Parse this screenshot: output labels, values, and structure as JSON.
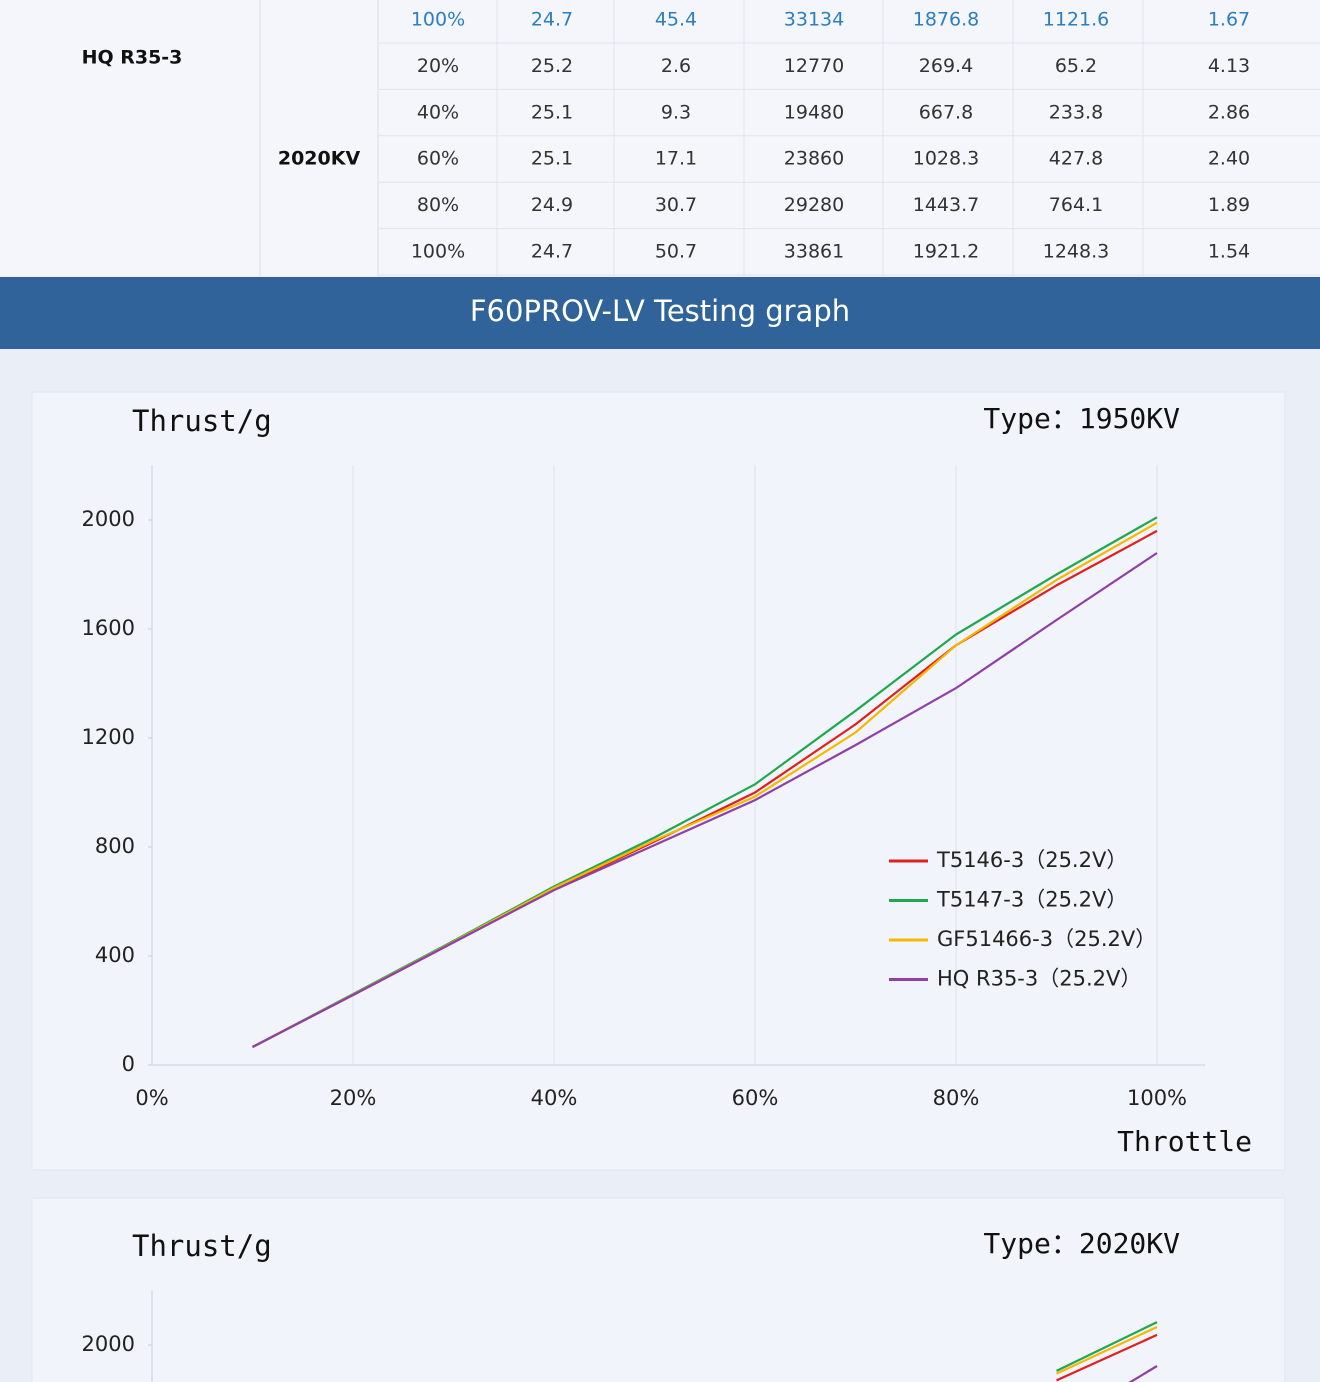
{
  "table": {
    "group_label": "HQ R35-3",
    "kv_label": "2020KV",
    "rows": [
      [
        "100%",
        "24.7",
        "45.4",
        "33134",
        "1876.8",
        "1121.6",
        "1.67"
      ],
      [
        "20%",
        "25.2",
        "2.6",
        "12770",
        "269.4",
        "65.2",
        "4.13"
      ],
      [
        "40%",
        "25.1",
        "9.3",
        "19480",
        "667.8",
        "233.8",
        "2.86"
      ],
      [
        "60%",
        "25.1",
        "17.1",
        "23860",
        "1028.3",
        "427.8",
        "2.40"
      ],
      [
        "80%",
        "24.9",
        "30.7",
        "29280",
        "1443.7",
        "764.1",
        "1.89"
      ],
      [
        "100%",
        "24.7",
        "50.7",
        "33861",
        "1921.2",
        "1248.3",
        "1.54"
      ]
    ]
  },
  "banner": {
    "title": "F60PROV-LV Testing graph"
  },
  "chart_data": [
    {
      "type": "line",
      "y_label": "Thrust/g",
      "x_label": "Throttle",
      "annotation": "Type：1950KV",
      "x": [
        10,
        20,
        30,
        40,
        50,
        60,
        70,
        80,
        90,
        100
      ],
      "xlim": [
        0,
        100
      ],
      "xticks": [
        {
          "value": 0,
          "label": "0%"
        },
        {
          "value": 20,
          "label": "20%"
        },
        {
          "value": 40,
          "label": "40%"
        },
        {
          "value": 60,
          "label": "60%"
        },
        {
          "value": 80,
          "label": "80%"
        },
        {
          "value": 100,
          "label": "100%"
        }
      ],
      "ylim": [
        0,
        2200
      ],
      "yticks": [
        0,
        400,
        800,
        1200,
        1600,
        2000
      ],
      "grid": true,
      "legend": "lower right",
      "series": [
        {
          "name": "T5146-3（25.2V）",
          "color": "#e0201e",
          "values": [
            66,
            257,
            450,
            645,
            820,
            1000,
            1250,
            1540,
            1760,
            1960
          ]
        },
        {
          "name": "T5147-3（25.2V）",
          "color": "#20a850",
          "values": [
            66,
            260,
            455,
            655,
            835,
            1030,
            1300,
            1580,
            1800,
            2010
          ]
        },
        {
          "name": "GF51466-3（25.2V）",
          "color": "#f5b800",
          "values": [
            66,
            258,
            452,
            650,
            825,
            985,
            1220,
            1540,
            1780,
            1990
          ]
        },
        {
          "name": "HQ R35-3（25.2V）",
          "color": "#8e3fa8",
          "values": [
            66,
            257,
            450,
            642,
            807,
            972,
            1174,
            1383,
            1633,
            1879
          ]
        }
      ]
    },
    {
      "type": "line",
      "y_label": "Thrust/g",
      "annotation": "Type：2020KV",
      "x": [
        90,
        100
      ],
      "xlim": [
        0,
        100
      ],
      "ylim": [
        0,
        2200
      ],
      "yticks": [
        2000
      ],
      "grid": true,
      "series": [
        {
          "name": "T5146-3（25.2V）",
          "color": "#e0201e",
          "values": [
            1870,
            2037
          ]
        },
        {
          "name": "T5147-3（25.2V）",
          "color": "#20a850",
          "values": [
            1905,
            2084
          ]
        },
        {
          "name": "GF51466-3（25.2V）",
          "color": "#f5b800",
          "values": [
            1895,
            2066
          ]
        },
        {
          "name": "HQ R35-3（25.2V）",
          "color": "#8e3fa8",
          "values": [
            1700,
            1923
          ]
        }
      ]
    }
  ]
}
